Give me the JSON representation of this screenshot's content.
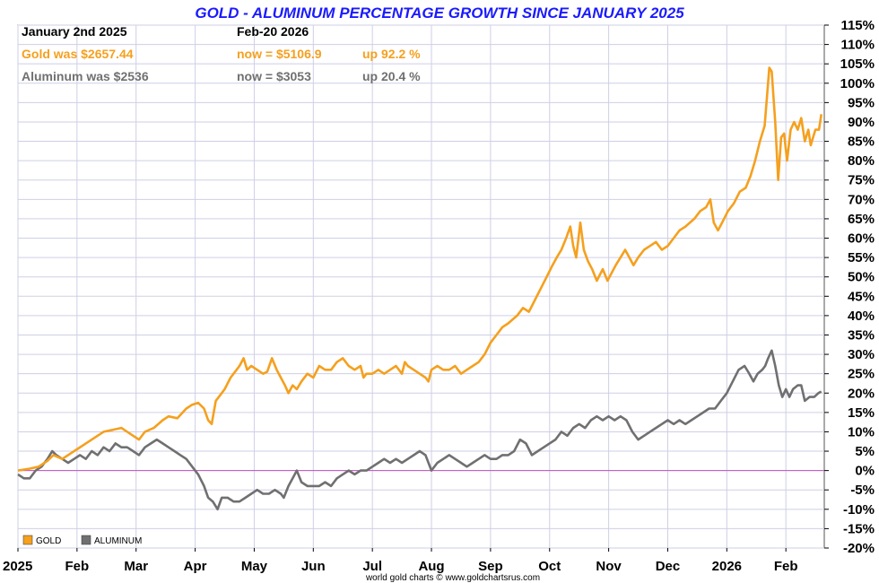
{
  "chart_data": {
    "type": "line",
    "title": "GOLD - ALUMINUM PERCENTAGE GROWTH SINCE JANUARY 2025",
    "info": {
      "start_label": "January 2nd 2025",
      "end_label": "Feb-20  2026",
      "gold": {
        "was": "Gold was $2657.44",
        "now": "now = $5106.9",
        "up": "up 92.2 %"
      },
      "aluminum": {
        "was": "Aluminum was $2536",
        "now": "now = $3053",
        "up": "up 20.4 %"
      }
    },
    "colors": {
      "gold": "#f5a01e",
      "aluminum": "#707070",
      "zero_line": "#c050c0",
      "grid": "#cfcfe6",
      "title": "#1a1aff"
    },
    "xlim": [
      0,
      13.65
    ],
    "ylim": [
      -20,
      115
    ],
    "yticks": [
      -20,
      -15,
      -10,
      -5,
      0,
      5,
      10,
      15,
      20,
      25,
      30,
      35,
      40,
      45,
      50,
      55,
      60,
      65,
      70,
      75,
      80,
      85,
      90,
      95,
      100,
      105,
      110,
      115
    ],
    "ytick_suffix": "%",
    "xticks": [
      {
        "label": "2025",
        "x": 0
      },
      {
        "label": "Feb",
        "x": 1
      },
      {
        "label": "Mar",
        "x": 2
      },
      {
        "label": "Apr",
        "x": 3
      },
      {
        "label": "May",
        "x": 4
      },
      {
        "label": "Jun",
        "x": 5
      },
      {
        "label": "Jul",
        "x": 6
      },
      {
        "label": "Aug",
        "x": 7
      },
      {
        "label": "Sep",
        "x": 8
      },
      {
        "label": "Oct",
        "x": 9
      },
      {
        "label": "Nov",
        "x": 10
      },
      {
        "label": "Dec",
        "x": 11
      },
      {
        "label": "2026",
        "x": 12
      },
      {
        "label": "Feb",
        "x": 13
      }
    ],
    "legend": [
      {
        "name": "GOLD",
        "color": "#f5a01e"
      },
      {
        "name": "ALUMINUM",
        "color": "#707070"
      }
    ],
    "credit": "world gold charts © www.goldchartsrus.com",
    "series": [
      {
        "name": "GOLD",
        "color": "#f5a01e",
        "points": [
          [
            0,
            0
          ],
          [
            0.2,
            0.5
          ],
          [
            0.35,
            1
          ],
          [
            0.5,
            2.5
          ],
          [
            0.6,
            4
          ],
          [
            0.75,
            3
          ],
          [
            0.9,
            4.5
          ],
          [
            1,
            5.5
          ],
          [
            1.15,
            7
          ],
          [
            1.3,
            8.5
          ],
          [
            1.45,
            10
          ],
          [
            1.6,
            10.5
          ],
          [
            1.75,
            11
          ],
          [
            1.85,
            10
          ],
          [
            1.95,
            9
          ],
          [
            2.05,
            8
          ],
          [
            2.15,
            10
          ],
          [
            2.3,
            11
          ],
          [
            2.45,
            13
          ],
          [
            2.55,
            14
          ],
          [
            2.7,
            13.5
          ],
          [
            2.85,
            16
          ],
          [
            2.95,
            17
          ],
          [
            3.05,
            17.5
          ],
          [
            3.15,
            16
          ],
          [
            3.22,
            13
          ],
          [
            3.28,
            12
          ],
          [
            3.35,
            18
          ],
          [
            3.45,
            20
          ],
          [
            3.5,
            21
          ],
          [
            3.6,
            24
          ],
          [
            3.65,
            25
          ],
          [
            3.75,
            27
          ],
          [
            3.82,
            29
          ],
          [
            3.88,
            26
          ],
          [
            3.95,
            27
          ],
          [
            4.05,
            26
          ],
          [
            4.15,
            25
          ],
          [
            4.22,
            25.5
          ],
          [
            4.3,
            29
          ],
          [
            4.38,
            26
          ],
          [
            4.45,
            24
          ],
          [
            4.52,
            22
          ],
          [
            4.58,
            20
          ],
          [
            4.65,
            22
          ],
          [
            4.72,
            21
          ],
          [
            4.8,
            23
          ],
          [
            4.9,
            25
          ],
          [
            5,
            24
          ],
          [
            5.1,
            27
          ],
          [
            5.2,
            26
          ],
          [
            5.3,
            26
          ],
          [
            5.4,
            28
          ],
          [
            5.5,
            29
          ],
          [
            5.6,
            27
          ],
          [
            5.7,
            26
          ],
          [
            5.8,
            27
          ],
          [
            5.85,
            24
          ],
          [
            5.9,
            25
          ],
          [
            6,
            25
          ],
          [
            6.1,
            26
          ],
          [
            6.2,
            25
          ],
          [
            6.3,
            26
          ],
          [
            6.4,
            27
          ],
          [
            6.5,
            25
          ],
          [
            6.55,
            28
          ],
          [
            6.6,
            27
          ],
          [
            6.7,
            26
          ],
          [
            6.8,
            25
          ],
          [
            6.9,
            24
          ],
          [
            6.95,
            23
          ],
          [
            7,
            26
          ],
          [
            7.1,
            27
          ],
          [
            7.2,
            26
          ],
          [
            7.3,
            26
          ],
          [
            7.4,
            27
          ],
          [
            7.5,
            25
          ],
          [
            7.6,
            26
          ],
          [
            7.7,
            27
          ],
          [
            7.8,
            28
          ],
          [
            7.9,
            30
          ],
          [
            8,
            33
          ],
          [
            8.1,
            35
          ],
          [
            8.2,
            37
          ],
          [
            8.3,
            38
          ],
          [
            8.45,
            40
          ],
          [
            8.55,
            42
          ],
          [
            8.65,
            41
          ],
          [
            8.75,
            44
          ],
          [
            8.85,
            47
          ],
          [
            8.95,
            50
          ],
          [
            9.05,
            53
          ],
          [
            9.12,
            55
          ],
          [
            9.2,
            57
          ],
          [
            9.28,
            60
          ],
          [
            9.35,
            63
          ],
          [
            9.4,
            58
          ],
          [
            9.45,
            55
          ],
          [
            9.52,
            64
          ],
          [
            9.58,
            57
          ],
          [
            9.65,
            54
          ],
          [
            9.72,
            52
          ],
          [
            9.8,
            49
          ],
          [
            9.9,
            52
          ],
          [
            9.98,
            49
          ],
          [
            10.05,
            51
          ],
          [
            10.12,
            53
          ],
          [
            10.2,
            55
          ],
          [
            10.28,
            57
          ],
          [
            10.35,
            55
          ],
          [
            10.42,
            53
          ],
          [
            10.5,
            55
          ],
          [
            10.6,
            57
          ],
          [
            10.7,
            58
          ],
          [
            10.8,
            59
          ],
          [
            10.9,
            57
          ],
          [
            11,
            58
          ],
          [
            11.1,
            60
          ],
          [
            11.2,
            62
          ],
          [
            11.3,
            63
          ],
          [
            11.45,
            65
          ],
          [
            11.55,
            67
          ],
          [
            11.65,
            68
          ],
          [
            11.72,
            70
          ],
          [
            11.78,
            64
          ],
          [
            11.85,
            62
          ],
          [
            11.92,
            64
          ],
          [
            12.02,
            67
          ],
          [
            12.12,
            69
          ],
          [
            12.22,
            72
          ],
          [
            12.32,
            73
          ],
          [
            12.4,
            76
          ],
          [
            12.48,
            80
          ],
          [
            12.56,
            85
          ],
          [
            12.64,
            89
          ],
          [
            12.72,
            104
          ],
          [
            12.76,
            103
          ],
          [
            12.82,
            90
          ],
          [
            12.87,
            75
          ],
          [
            12.92,
            86
          ],
          [
            12.97,
            87
          ],
          [
            13.02,
            80
          ],
          [
            13.08,
            88
          ],
          [
            13.14,
            90
          ],
          [
            13.2,
            88
          ],
          [
            13.26,
            91
          ],
          [
            13.32,
            85
          ],
          [
            13.38,
            88
          ],
          [
            13.42,
            84
          ],
          [
            13.5,
            88
          ],
          [
            13.56,
            88
          ],
          [
            13.6,
            92
          ]
        ]
      },
      {
        "name": "ALUMINUM",
        "color": "#707070",
        "points": [
          [
            0,
            -1
          ],
          [
            0.1,
            -2
          ],
          [
            0.2,
            -2
          ],
          [
            0.3,
            0
          ],
          [
            0.4,
            1
          ],
          [
            0.5,
            3
          ],
          [
            0.58,
            5
          ],
          [
            0.65,
            4
          ],
          [
            0.75,
            3
          ],
          [
            0.85,
            2
          ],
          [
            0.95,
            3
          ],
          [
            1.05,
            4
          ],
          [
            1.15,
            3
          ],
          [
            1.25,
            5
          ],
          [
            1.35,
            4
          ],
          [
            1.45,
            6
          ],
          [
            1.55,
            5
          ],
          [
            1.65,
            7
          ],
          [
            1.75,
            6
          ],
          [
            1.85,
            6
          ],
          [
            1.95,
            5
          ],
          [
            2.05,
            4
          ],
          [
            2.15,
            6
          ],
          [
            2.25,
            7
          ],
          [
            2.35,
            8
          ],
          [
            2.45,
            7
          ],
          [
            2.55,
            6
          ],
          [
            2.65,
            5
          ],
          [
            2.75,
            4
          ],
          [
            2.85,
            3
          ],
          [
            2.95,
            1
          ],
          [
            3.05,
            -1
          ],
          [
            3.15,
            -4
          ],
          [
            3.22,
            -7
          ],
          [
            3.3,
            -8
          ],
          [
            3.38,
            -10
          ],
          [
            3.45,
            -7
          ],
          [
            3.55,
            -7
          ],
          [
            3.65,
            -8
          ],
          [
            3.75,
            -8
          ],
          [
            3.85,
            -7
          ],
          [
            3.95,
            -6
          ],
          [
            4.05,
            -5
          ],
          [
            4.15,
            -6
          ],
          [
            4.25,
            -6
          ],
          [
            4.35,
            -5
          ],
          [
            4.45,
            -6
          ],
          [
            4.5,
            -7
          ],
          [
            4.58,
            -4
          ],
          [
            4.65,
            -2
          ],
          [
            4.72,
            0
          ],
          [
            4.8,
            -3
          ],
          [
            4.9,
            -4
          ],
          [
            5,
            -4
          ],
          [
            5.1,
            -4
          ],
          [
            5.2,
            -3
          ],
          [
            5.3,
            -4
          ],
          [
            5.4,
            -2
          ],
          [
            5.5,
            -1
          ],
          [
            5.6,
            0
          ],
          [
            5.7,
            -1
          ],
          [
            5.8,
            0
          ],
          [
            5.9,
            0
          ],
          [
            6,
            1
          ],
          [
            6.1,
            2
          ],
          [
            6.2,
            3
          ],
          [
            6.3,
            2
          ],
          [
            6.4,
            3
          ],
          [
            6.5,
            2
          ],
          [
            6.6,
            3
          ],
          [
            6.7,
            4
          ],
          [
            6.8,
            5
          ],
          [
            6.9,
            4
          ],
          [
            6.95,
            2
          ],
          [
            7,
            0
          ],
          [
            7.1,
            2
          ],
          [
            7.2,
            3
          ],
          [
            7.3,
            4
          ],
          [
            7.4,
            3
          ],
          [
            7.5,
            2
          ],
          [
            7.6,
            1
          ],
          [
            7.7,
            2
          ],
          [
            7.8,
            3
          ],
          [
            7.9,
            4
          ],
          [
            8,
            3
          ],
          [
            8.1,
            3
          ],
          [
            8.2,
            4
          ],
          [
            8.3,
            4
          ],
          [
            8.4,
            5
          ],
          [
            8.5,
            8
          ],
          [
            8.6,
            7
          ],
          [
            8.7,
            4
          ],
          [
            8.8,
            5
          ],
          [
            8.9,
            6
          ],
          [
            9,
            7
          ],
          [
            9.1,
            8
          ],
          [
            9.2,
            10
          ],
          [
            9.3,
            9
          ],
          [
            9.4,
            11
          ],
          [
            9.5,
            12
          ],
          [
            9.6,
            11
          ],
          [
            9.7,
            13
          ],
          [
            9.8,
            14
          ],
          [
            9.9,
            13
          ],
          [
            10,
            14
          ],
          [
            10.1,
            13
          ],
          [
            10.2,
            14
          ],
          [
            10.3,
            13
          ],
          [
            10.4,
            10
          ],
          [
            10.5,
            8
          ],
          [
            10.6,
            9
          ],
          [
            10.7,
            10
          ],
          [
            10.8,
            11
          ],
          [
            10.9,
            12
          ],
          [
            11,
            13
          ],
          [
            11.1,
            12
          ],
          [
            11.2,
            13
          ],
          [
            11.3,
            12
          ],
          [
            11.4,
            13
          ],
          [
            11.5,
            14
          ],
          [
            11.6,
            15
          ],
          [
            11.7,
            16
          ],
          [
            11.8,
            16
          ],
          [
            11.9,
            18
          ],
          [
            12,
            20
          ],
          [
            12.1,
            23
          ],
          [
            12.2,
            26
          ],
          [
            12.3,
            27
          ],
          [
            12.38,
            25
          ],
          [
            12.45,
            23
          ],
          [
            12.52,
            25
          ],
          [
            12.6,
            26
          ],
          [
            12.65,
            27
          ],
          [
            12.7,
            29
          ],
          [
            12.76,
            31
          ],
          [
            12.82,
            27
          ],
          [
            12.88,
            22
          ],
          [
            12.94,
            19
          ],
          [
            13,
            21
          ],
          [
            13.06,
            19
          ],
          [
            13.12,
            21
          ],
          [
            13.2,
            22
          ],
          [
            13.26,
            22
          ],
          [
            13.32,
            18
          ],
          [
            13.4,
            19
          ],
          [
            13.48,
            19
          ],
          [
            13.55,
            20
          ],
          [
            13.6,
            20.4
          ]
        ]
      }
    ]
  }
}
